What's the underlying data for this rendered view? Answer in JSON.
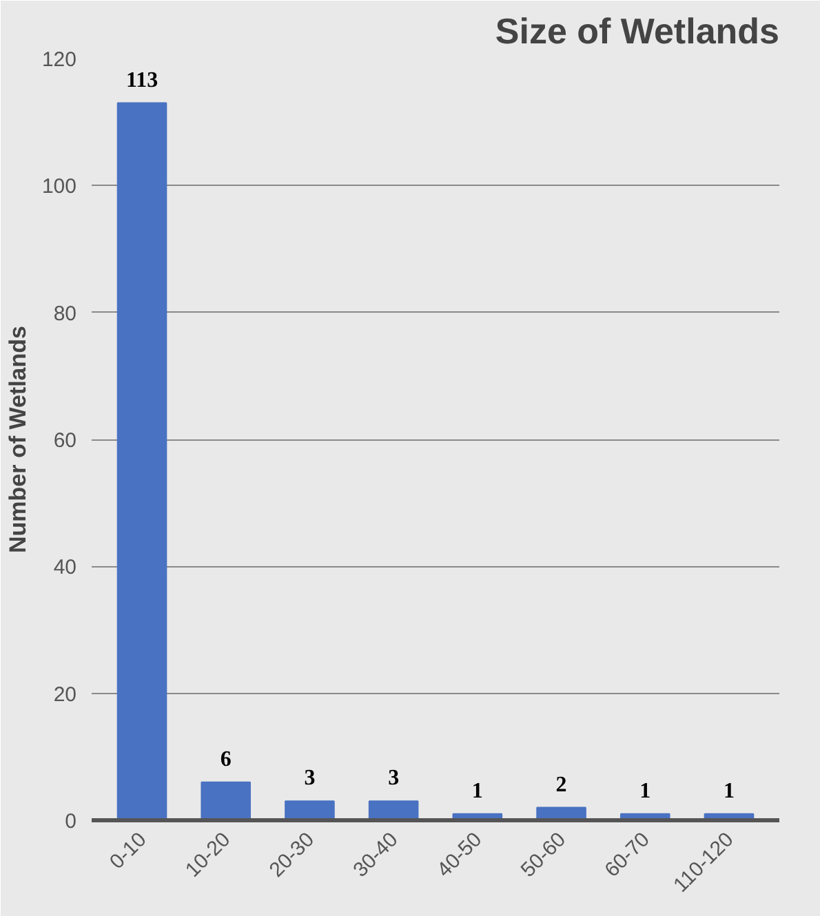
{
  "chart_data": {
    "type": "bar",
    "title": "Size of Wetlands",
    "ylabel": "Number of Wetlands",
    "categories": [
      "0-10",
      "10-20",
      "20-30",
      "30-40",
      "40-50",
      "50-60",
      "60-70",
      "110-120"
    ],
    "values": [
      113,
      6,
      3,
      3,
      1,
      2,
      1,
      1
    ],
    "color": "#4a72c2",
    "ylim": [
      0,
      120
    ],
    "yticks": [
      0,
      20,
      40,
      60,
      80,
      100,
      120
    ],
    "grid": "y",
    "data_labels": true
  }
}
